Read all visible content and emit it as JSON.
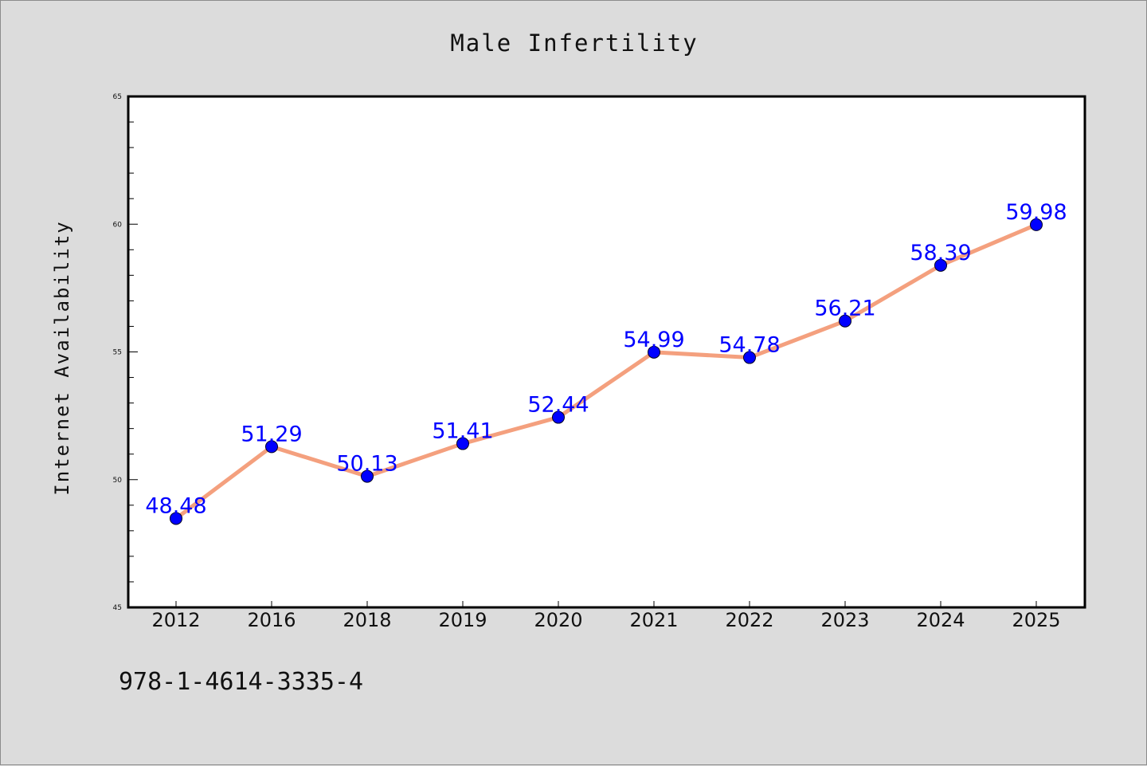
{
  "colors": {
    "background": "#dcdcdc",
    "plot_background": "#ffffff",
    "line": "#f4a07e",
    "marker": "#0000ff",
    "label": "#0000ff",
    "text": "#111111"
  },
  "chart_data": {
    "type": "line",
    "title": "Male Infertility",
    "xlabel": "",
    "ylabel": "Internet Availability",
    "categories": [
      "2012",
      "2016",
      "2018",
      "2019",
      "2020",
      "2021",
      "2022",
      "2023",
      "2024",
      "2025"
    ],
    "series": [
      {
        "values": [
          48.48,
          51.29,
          50.13,
          51.41,
          52.44,
          54.99,
          54.78,
          56.21,
          58.39,
          59.98
        ],
        "labels": [
          "48.48",
          "51.29",
          "50.13",
          "51.41",
          "52.44",
          "54.99",
          "54.78",
          "56.21",
          "58.39",
          "59.98"
        ]
      }
    ],
    "ylim": [
      45,
      65
    ],
    "y_ticks": [
      "45",
      "50",
      "55",
      "60",
      "65"
    ],
    "y_minor_step": 1,
    "grid": false,
    "annotation": "978-1-4614-3335-4"
  }
}
